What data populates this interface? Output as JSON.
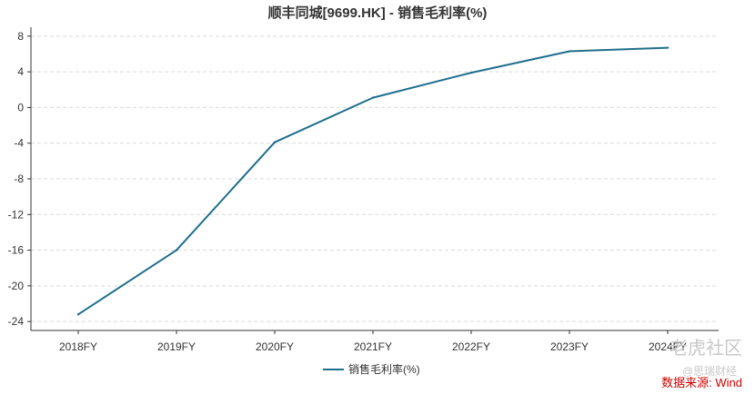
{
  "chart_data": {
    "type": "line",
    "title": "顺丰同城[9699.HK] - 销售毛利率(%)",
    "categories": [
      "2018FY",
      "2019FY",
      "2020FY",
      "2021FY",
      "2022FY",
      "2023FY",
      "2024FY"
    ],
    "series": [
      {
        "name": "销售毛利率(%)",
        "values": [
          -23.2,
          -16.0,
          -3.9,
          1.1,
          3.9,
          6.3,
          6.7
        ]
      }
    ],
    "yticks": [
      8,
      4,
      0,
      -4,
      -8,
      -12,
      -16,
      -20,
      -24
    ],
    "ylim": [
      -25,
      9
    ],
    "grid": true,
    "legend_position": "bottom",
    "line_color": "#1f6e8c"
  },
  "source_label": "数据来源: Wind",
  "watermarks": {
    "logo": "老虎社区",
    "author": "@思瑞财经"
  }
}
